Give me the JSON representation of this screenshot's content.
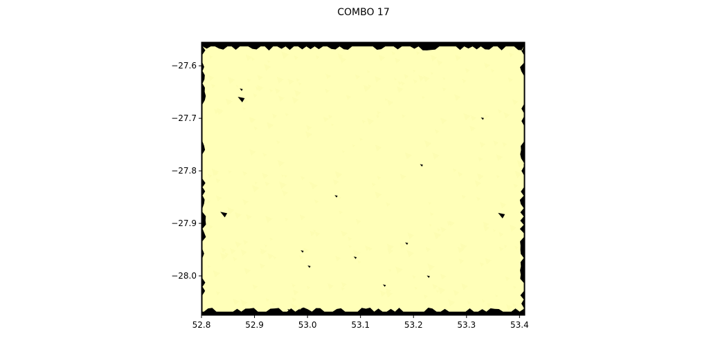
{
  "chart_data": {
    "type": "heatmap",
    "title": "COMBO 17",
    "xlabel": "",
    "ylabel": "",
    "xlim": [
      52.8,
      53.41
    ],
    "ylim": [
      -28.075,
      -27.555
    ],
    "x_ticks": [
      52.8,
      52.9,
      53.0,
      53.1,
      53.2,
      53.3,
      53.4
    ],
    "x_tick_labels": [
      "52.8",
      "52.9",
      "53.0",
      "53.1",
      "53.2",
      "53.3",
      "53.4"
    ],
    "y_ticks": [
      -27.6,
      -27.7,
      -27.8,
      -27.9,
      -28.0
    ],
    "y_tick_labels": [
      "−27.6",
      "−27.7",
      "−27.8",
      "−27.9",
      "−28.0"
    ],
    "grid": false,
    "legend": "none",
    "colors": {
      "background": "#000000",
      "coverage": "#ffffb8",
      "coverage_alt": "#fdfdb0"
    },
    "coverage_region": {
      "x_range": [
        52.802,
        53.408
      ],
      "y_range": [
        -28.068,
        -27.563
      ]
    },
    "holes": [
      {
        "x": 52.875,
        "y": -27.663
      },
      {
        "x": 52.875,
        "y": -27.645
      },
      {
        "x": 52.842,
        "y": -27.882
      },
      {
        "x": 53.366,
        "y": -27.884
      },
      {
        "x": 53.33,
        "y": -27.7
      },
      {
        "x": 53.215,
        "y": -27.789
      },
      {
        "x": 53.054,
        "y": -27.848
      },
      {
        "x": 52.99,
        "y": -27.953
      },
      {
        "x": 53.003,
        "y": -27.982
      },
      {
        "x": 53.09,
        "y": -27.965
      },
      {
        "x": 53.187,
        "y": -27.938
      },
      {
        "x": 53.228,
        "y": -28.001
      },
      {
        "x": 53.145,
        "y": -28.018
      },
      {
        "x": 52.965,
        "y": -28.065
      }
    ]
  }
}
